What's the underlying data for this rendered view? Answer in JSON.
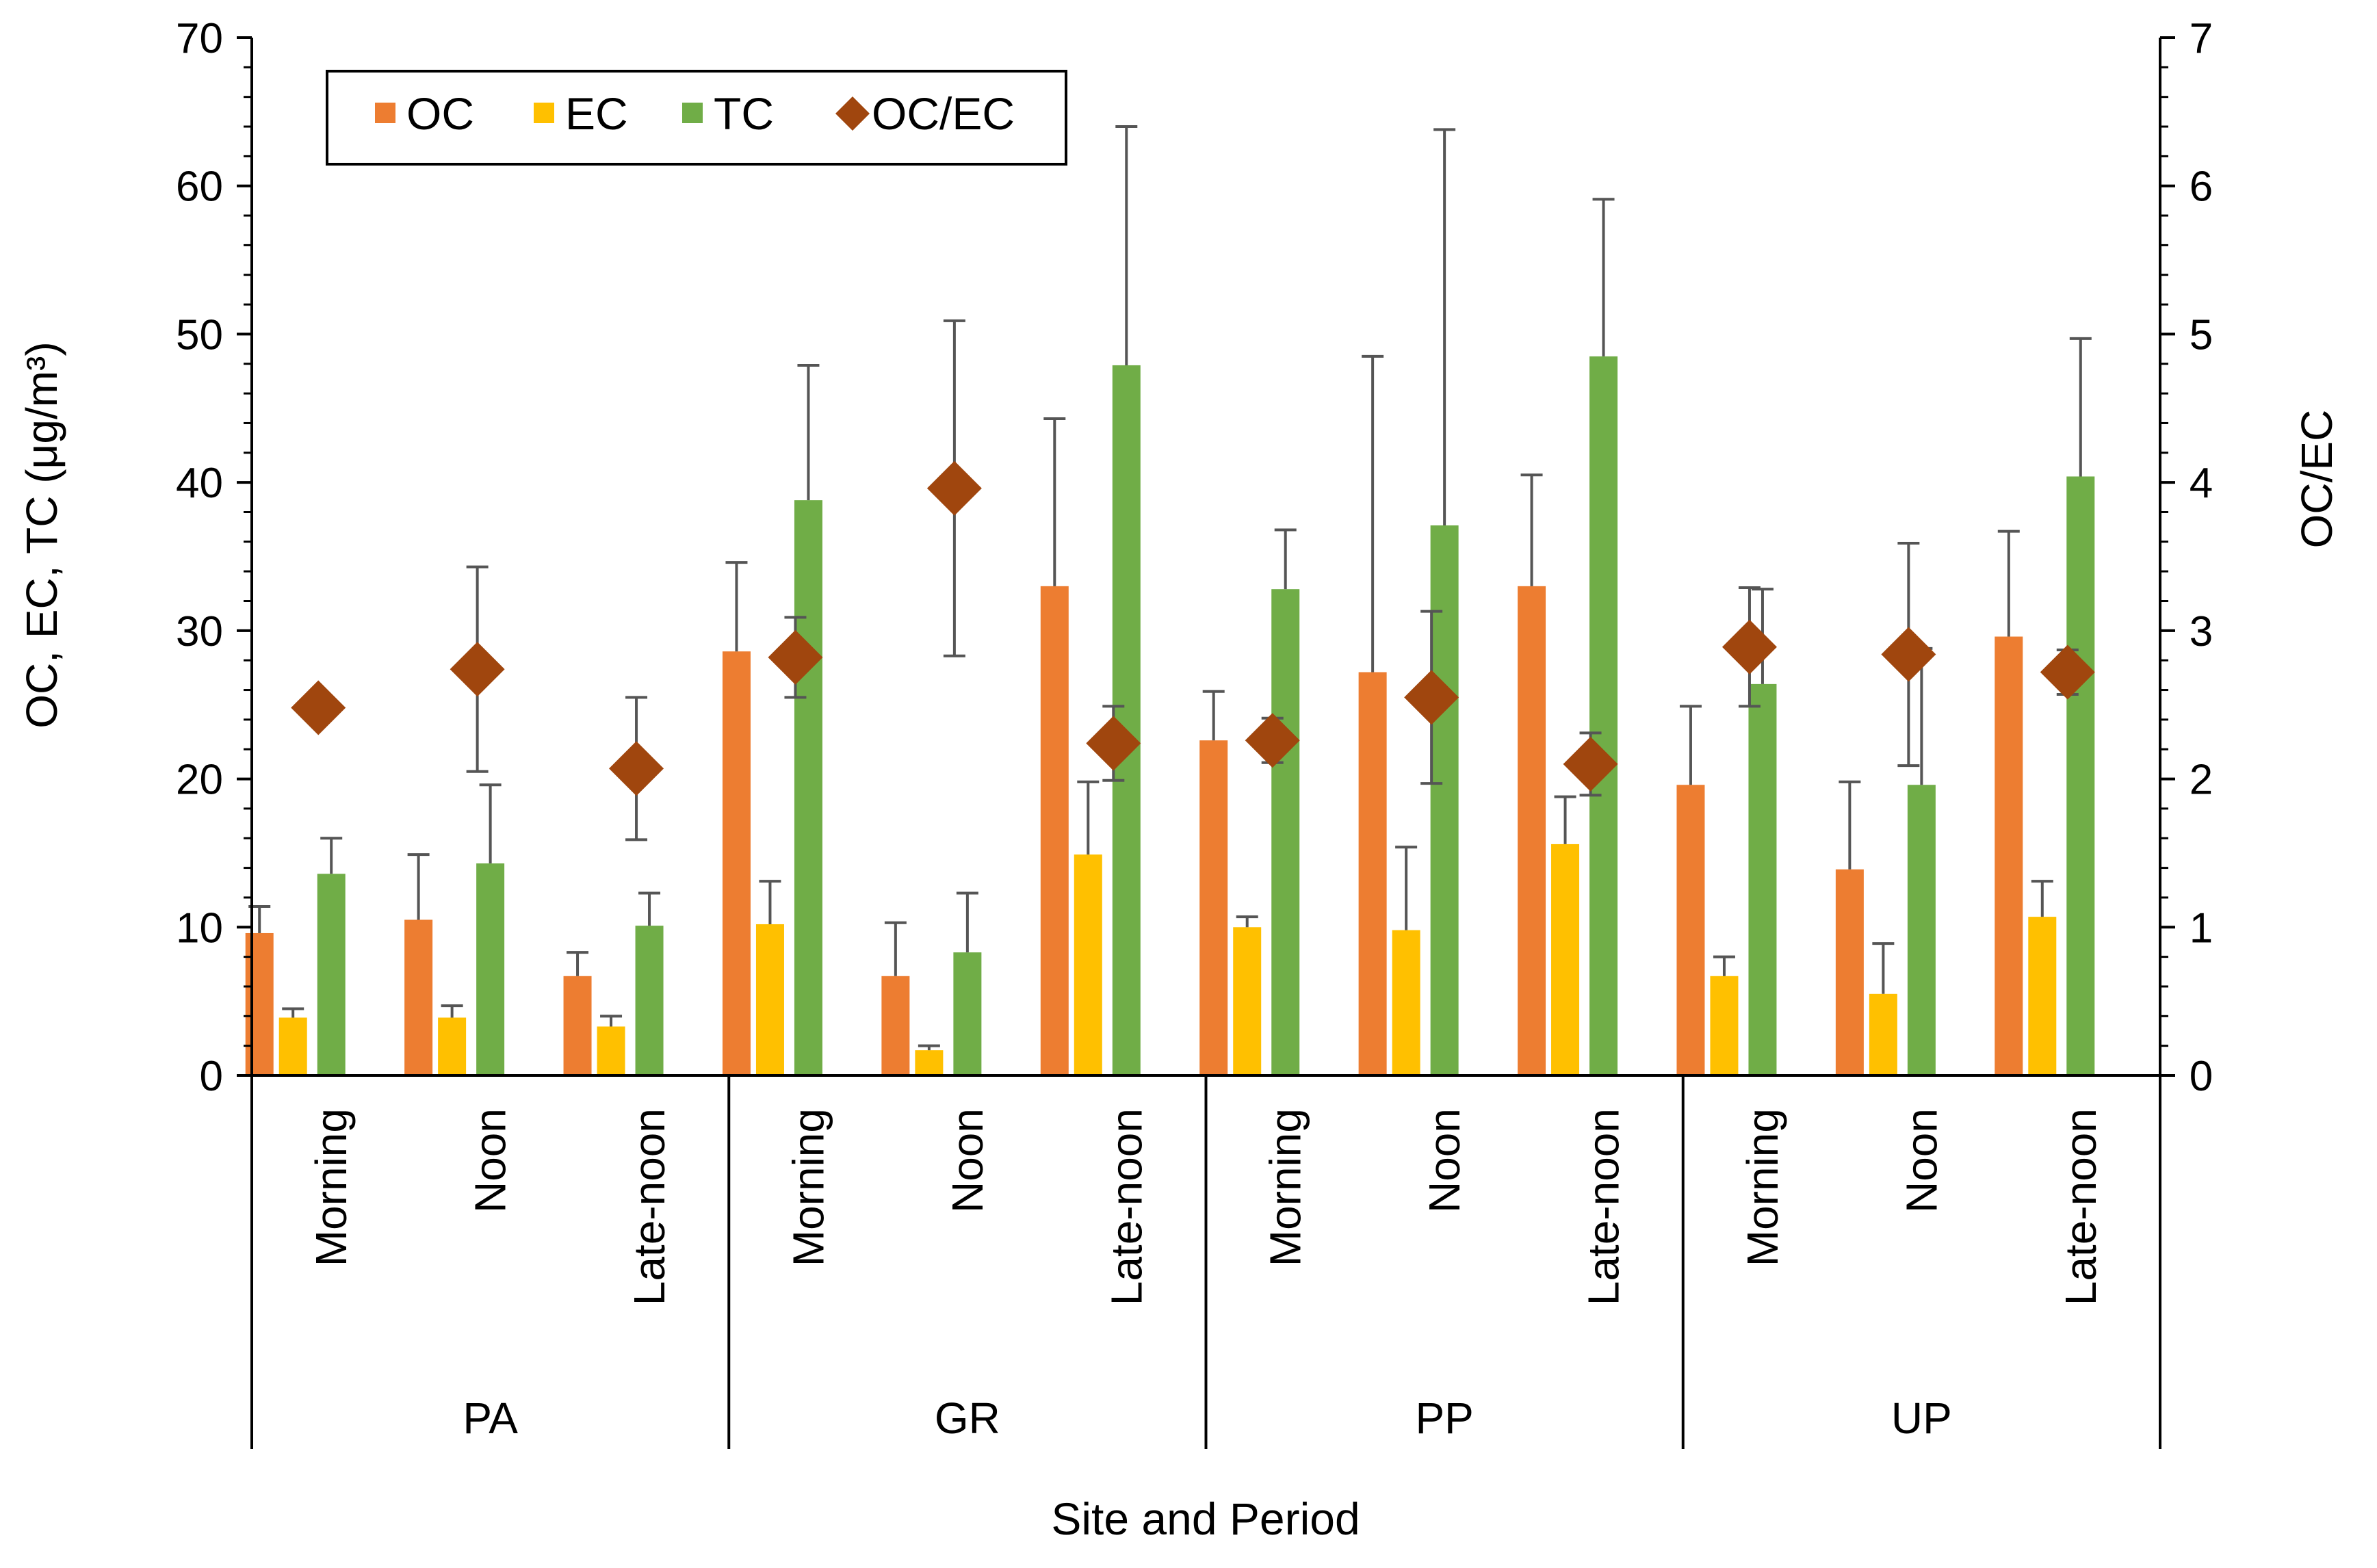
{
  "chart_data": {
    "type": "bar",
    "xlabel": "Site and Period",
    "ylabel_left": "OC, EC, TC (μg/m³)",
    "ylabel_right": "OC/EC",
    "ylim_left": [
      0,
      70
    ],
    "ylim_right": [
      0,
      7
    ],
    "yticks_left": [
      0,
      10,
      20,
      30,
      40,
      50,
      60,
      70
    ],
    "yticks_right": [
      0,
      1,
      2,
      3,
      4,
      5,
      6,
      7
    ],
    "legend": {
      "position": "top-left",
      "entries": [
        "OC",
        "EC",
        "TC",
        "OC/EC"
      ]
    },
    "groups": [
      {
        "site": "PA",
        "periods": [
          "Morning",
          "Noon",
          "Late-noon"
        ]
      },
      {
        "site": "GR",
        "periods": [
          "Morning",
          "Noon",
          "Late-noon"
        ]
      },
      {
        "site": "PP",
        "periods": [
          "Morning",
          "Noon",
          "Late-noon"
        ]
      },
      {
        "site": "UP",
        "periods": [
          "Morning",
          "Noon",
          "Late-noon"
        ]
      }
    ],
    "series": [
      {
        "name": "OC",
        "axis": "left",
        "kind": "bar",
        "color": "#ED7D31",
        "values": [
          9.6,
          10.5,
          6.7,
          28.6,
          6.7,
          33.0,
          22.6,
          27.2,
          33.0,
          19.6,
          13.9,
          29.6
        ],
        "errors": [
          1.8,
          4.4,
          1.6,
          6.0,
          3.6,
          11.3,
          3.3,
          21.3,
          7.5,
          5.3,
          5.9,
          7.1
        ]
      },
      {
        "name": "EC",
        "axis": "left",
        "kind": "bar",
        "color": "#FFC000",
        "values": [
          3.9,
          3.9,
          3.3,
          10.2,
          1.7,
          14.9,
          10.0,
          9.8,
          15.6,
          6.7,
          5.5,
          10.7
        ],
        "errors": [
          0.6,
          0.8,
          0.7,
          2.9,
          0.3,
          4.9,
          0.7,
          5.6,
          3.2,
          1.3,
          3.4,
          2.4
        ]
      },
      {
        "name": "TC",
        "axis": "left",
        "kind": "bar",
        "color": "#70AD47",
        "values": [
          13.6,
          14.3,
          10.1,
          38.8,
          8.3,
          47.9,
          32.8,
          37.1,
          48.5,
          26.4,
          19.6,
          40.4
        ],
        "errors": [
          2.4,
          5.3,
          2.2,
          9.1,
          4.0,
          16.1,
          4.0,
          26.7,
          10.6,
          6.4,
          9.2,
          9.3
        ]
      },
      {
        "name": "OC/EC",
        "axis": "right",
        "kind": "scatter",
        "color": "#A0460E",
        "values": [
          2.48,
          2.74,
          2.07,
          2.82,
          3.96,
          2.24,
          2.26,
          2.55,
          2.1,
          2.89,
          2.84,
          2.72
        ],
        "errors": [
          null,
          0.69,
          0.48,
          0.27,
          1.13,
          0.25,
          0.15,
          0.58,
          0.21,
          0.4,
          0.75,
          0.15
        ]
      }
    ]
  }
}
